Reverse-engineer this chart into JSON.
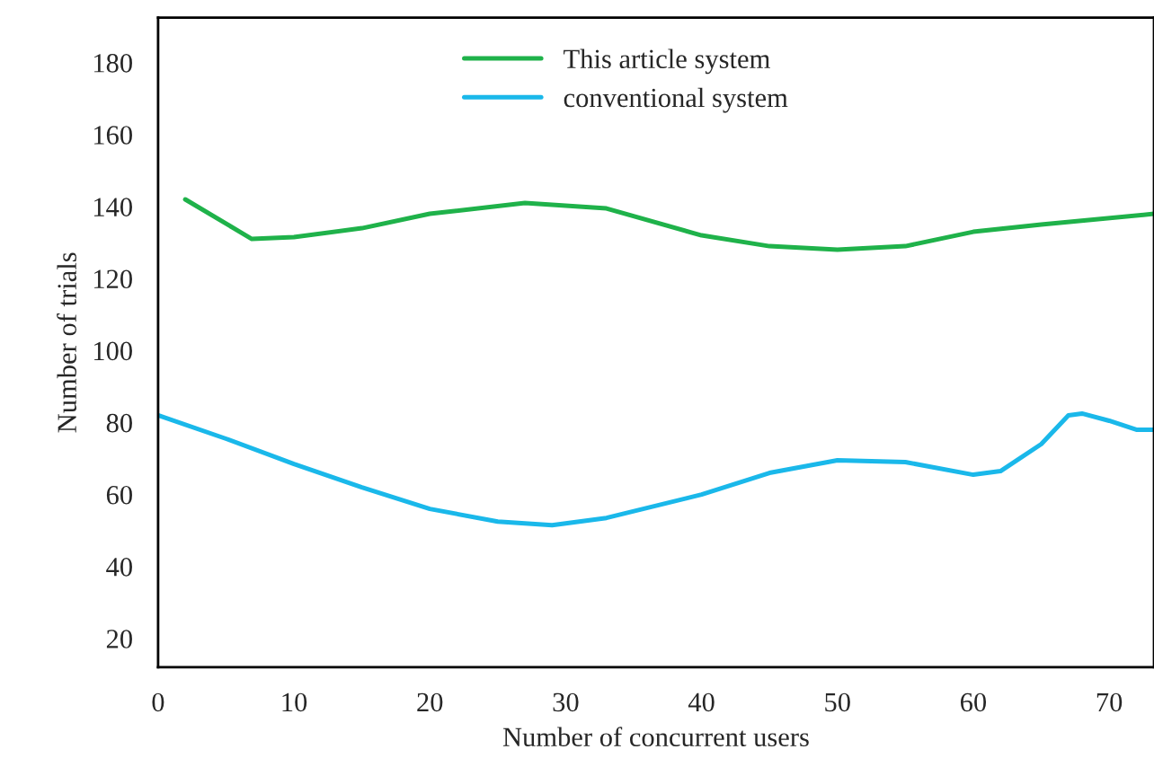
{
  "chart_data": {
    "type": "line",
    "xlabel": "Number of concurrent users",
    "ylabel": "Number of trials",
    "xlim": [
      0,
      73.3
    ],
    "ylim": [
      12,
      192.5
    ],
    "xticks": [
      0,
      10,
      20,
      30,
      40,
      50,
      60,
      70
    ],
    "yticks": [
      20,
      40,
      60,
      80,
      100,
      120,
      140,
      160,
      180
    ],
    "grid": false,
    "legend": "top",
    "marker": "none",
    "line_style": "solid",
    "series": [
      {
        "name": "This article system",
        "color": "#1fb24a",
        "x": [
          2,
          6.9,
          10,
          15,
          20,
          27,
          33,
          40,
          45,
          50,
          55,
          60,
          65,
          73.3
        ],
        "values": [
          142,
          131,
          131.5,
          134,
          138,
          141,
          139.5,
          132,
          129,
          128,
          129,
          133,
          135,
          138
        ]
      },
      {
        "name": "conventional system",
        "color": "#1ab8ea",
        "x": [
          0,
          5,
          10,
          15,
          20,
          25,
          29,
          33,
          40,
          45,
          50,
          55,
          60,
          62,
          65,
          67,
          68,
          70,
          72,
          73.3
        ],
        "values": [
          82,
          75.5,
          68.5,
          62,
          56,
          52.5,
          51.5,
          53.5,
          60,
          66,
          69.5,
          69,
          65.5,
          66.5,
          74,
          82,
          82.5,
          80.5,
          78,
          78
        ]
      }
    ]
  }
}
